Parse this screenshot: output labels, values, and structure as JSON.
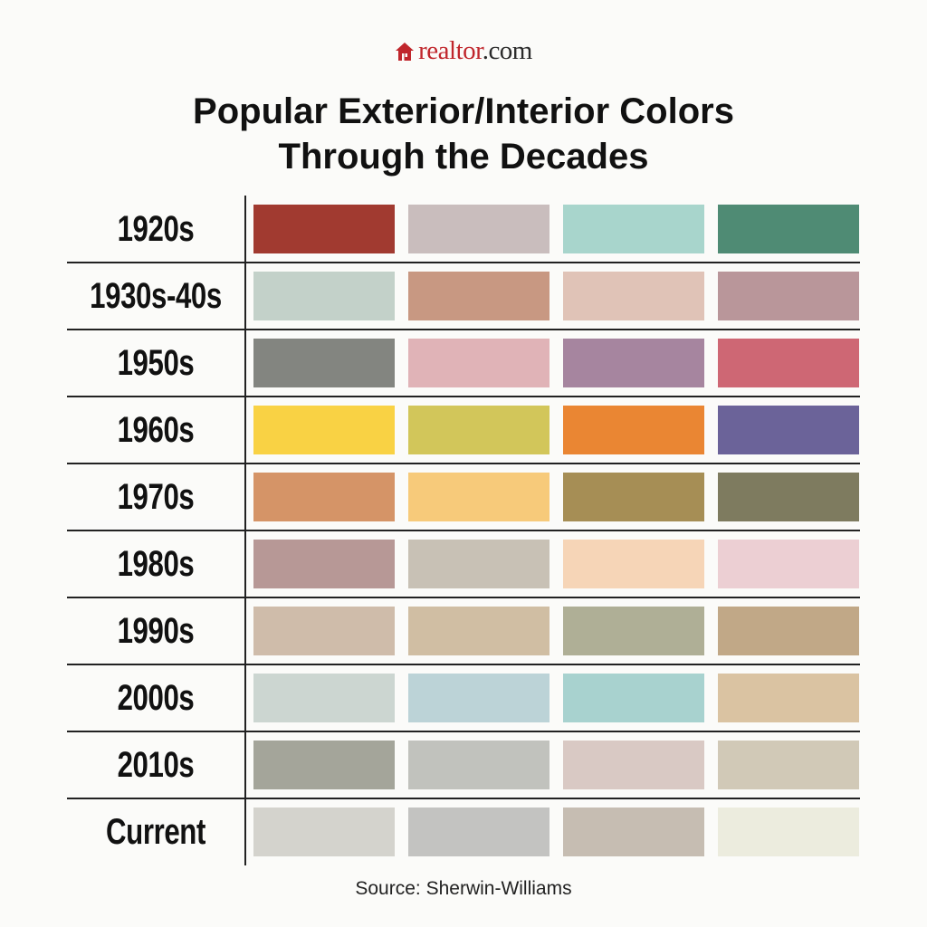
{
  "brand": {
    "name_main": "realtor",
    "name_suffix": ".com",
    "icon": "house-icon"
  },
  "title": {
    "line1": "Popular Exterior/Interior Colors",
    "line2": "Through the Decades"
  },
  "rows": [
    {
      "label": "1920s",
      "colors": [
        "#a13a30",
        "#c9bdbd",
        "#a8d5cc",
        "#4f8b74"
      ]
    },
    {
      "label": "1930s-40s",
      "colors": [
        "#c3d1c9",
        "#c89882",
        "#e0c3b7",
        "#b9969a"
      ]
    },
    {
      "label": "1950s",
      "colors": [
        "#838580",
        "#e0b3b7",
        "#a6859f",
        "#ce6774"
      ]
    },
    {
      "label": "1960s",
      "colors": [
        "#f9d244",
        "#d2c65a",
        "#ea8633",
        "#6b6399"
      ]
    },
    {
      "label": "1970s",
      "colors": [
        "#d59467",
        "#f7ca7a",
        "#a68e55",
        "#7e7b5f"
      ]
    },
    {
      "label": "1980s",
      "colors": [
        "#b79896",
        "#c8c1b5",
        "#f6d5b7",
        "#eccfd3"
      ]
    },
    {
      "label": "1990s",
      "colors": [
        "#cfbcaa",
        "#d0bea3",
        "#afaf96",
        "#c1a887"
      ]
    },
    {
      "label": "2000s",
      "colors": [
        "#ccd6d1",
        "#bcd3d7",
        "#a8d2cf",
        "#dac3a2"
      ]
    },
    {
      "label": "2010s",
      "colors": [
        "#a4a59a",
        "#c1c2bd",
        "#d9c9c4",
        "#d1c9b7"
      ]
    },
    {
      "label": "Current",
      "colors": [
        "#d4d3cd",
        "#c3c3c1",
        "#c6bdb2",
        "#ececde"
      ]
    }
  ],
  "source": "Source: Sherwin-Williams"
}
